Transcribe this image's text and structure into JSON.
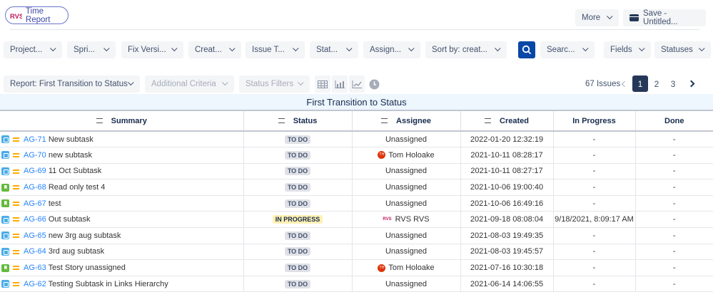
{
  "app": {
    "logo": "RVS",
    "title": "Time Report"
  },
  "header": {
    "more_label": "More",
    "save_label": "Save - Untitled..."
  },
  "filters": [
    "Project...",
    "Spri...",
    "Fix Versi...",
    "Creat...",
    "Issue T...",
    "Stat...",
    "Assign...",
    "Sort by: creat...",
    "Searc...",
    "Fields",
    "Statuses"
  ],
  "report": {
    "report_label": "Report: First Transition to Status",
    "criteria_label": "Additional Criteria",
    "status_filters_label": "Status Filters"
  },
  "view_icons": [
    "table-icon",
    "bar-chart-icon",
    "line-chart-icon",
    "clock-icon"
  ],
  "pagination": {
    "count": "67 Issues",
    "pages": [
      "1",
      "2",
      "3"
    ],
    "current": "1"
  },
  "table": {
    "title": "First Transition to Status",
    "columns": [
      "Summary",
      "Status",
      "Assignee",
      "Created",
      "In Progress",
      "Done"
    ],
    "rows": [
      {
        "type": "subtask",
        "key": "AG-71",
        "summary": "New subtask",
        "status": "TO DO",
        "assignee": "Unassigned",
        "avatar": "",
        "created": "2022-01-20 12:32:19",
        "in_progress": "-",
        "done": "-"
      },
      {
        "type": "subtask",
        "key": "AG-70",
        "summary": "new subtask",
        "status": "TO DO",
        "assignee": "Tom Holoake",
        "avatar": "TH",
        "created": "2021-10-11 08:28:17",
        "in_progress": "-",
        "done": "-"
      },
      {
        "type": "subtask",
        "key": "AG-69",
        "summary": "11 Oct Subtask",
        "status": "TO DO",
        "assignee": "Unassigned",
        "avatar": "",
        "created": "2021-10-11 08:27:17",
        "in_progress": "-",
        "done": "-"
      },
      {
        "type": "story",
        "key": "AG-68",
        "summary": "Read only test 4",
        "status": "TO DO",
        "assignee": "Unassigned",
        "avatar": "",
        "created": "2021-10-06 19:00:40",
        "in_progress": "-",
        "done": "-"
      },
      {
        "type": "story",
        "key": "AG-67",
        "summary": "test",
        "status": "TO DO",
        "assignee": "Unassigned",
        "avatar": "",
        "created": "2021-10-06 16:49:16",
        "in_progress": "-",
        "done": "-"
      },
      {
        "type": "subtask",
        "key": "AG-66",
        "summary": "Out subtask",
        "status": "IN PROGRESS",
        "assignee": "RVS RVS",
        "avatar": "RVS",
        "created": "2021-09-18 08:08:04",
        "in_progress": "9/18/2021, 8:09:17 AM",
        "done": "-"
      },
      {
        "type": "subtask",
        "key": "AG-65",
        "summary": "new 3rg aug subtask",
        "status": "TO DO",
        "assignee": "Unassigned",
        "avatar": "",
        "created": "2021-08-03 19:49:35",
        "in_progress": "-",
        "done": "-"
      },
      {
        "type": "subtask",
        "key": "AG-64",
        "summary": "3rd aug subtask",
        "status": "TO DO",
        "assignee": "Unassigned",
        "avatar": "",
        "created": "2021-08-03 19:45:57",
        "in_progress": "-",
        "done": "-"
      },
      {
        "type": "story",
        "key": "AG-63",
        "summary": "Test Story unassigned",
        "status": "TO DO",
        "assignee": "Tom Holoake",
        "avatar": "TH",
        "created": "2021-07-16 10:30:18",
        "in_progress": "-",
        "done": "-"
      },
      {
        "type": "subtask",
        "key": "AG-62",
        "summary": "Testing Subtask in Links Hierarchy",
        "status": "TO DO",
        "assignee": "Unassigned",
        "avatar": "",
        "created": "2021-06-14 14:06:55",
        "in_progress": "-",
        "done": "-"
      }
    ]
  },
  "colors": {
    "accent": "#0747a6",
    "link": "#2684ff",
    "current_page": "#253858",
    "title_bg": "#eef6fe"
  }
}
